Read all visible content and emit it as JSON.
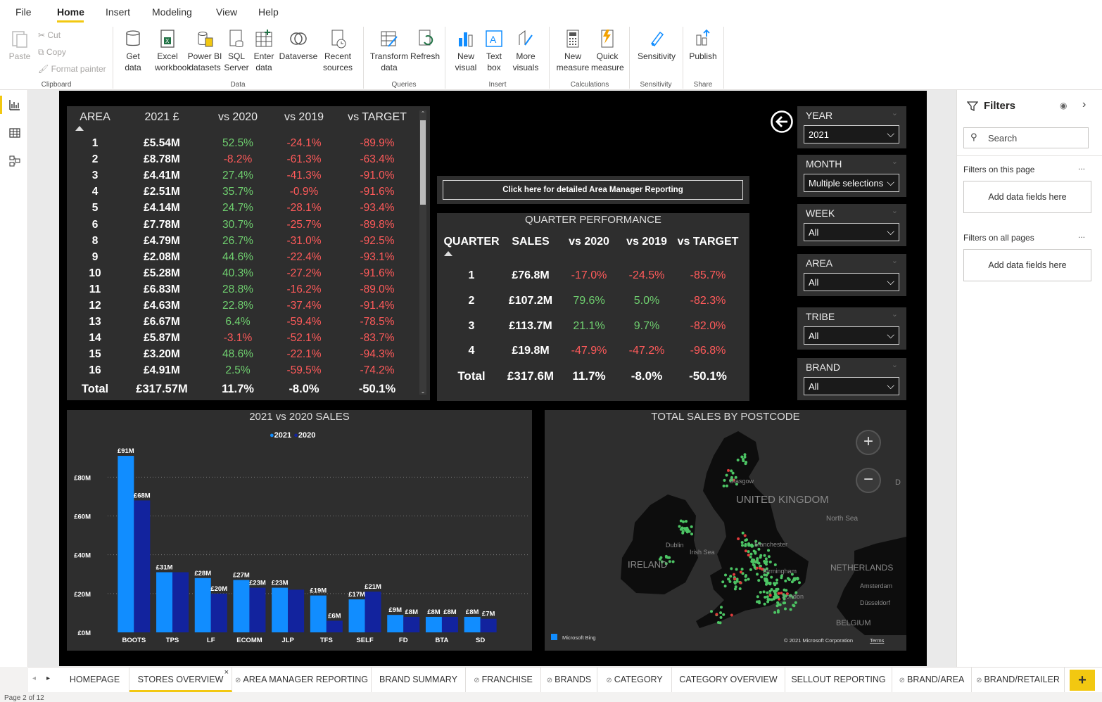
{
  "menu": {
    "items": [
      "File",
      "Home",
      "Insert",
      "Modeling",
      "View",
      "Help"
    ],
    "active": "Home"
  },
  "ribbon": {
    "clipboard": {
      "paste": "Paste",
      "cut": "Cut",
      "copy": "Copy",
      "format_painter": "Format painter",
      "group": "Clipboard"
    },
    "data": {
      "get_data": "Get data",
      "excel": "Excel workbook",
      "pbi_datasets": "Power BI datasets",
      "sql": "SQL Server",
      "enter": "Enter data",
      "dataverse": "Dataverse",
      "recent": "Recent sources",
      "group": "Data"
    },
    "queries": {
      "transform": "Transform data",
      "refresh": "Refresh",
      "group": "Queries"
    },
    "insert": {
      "new_visual": "New visual",
      "text_box": "Text box",
      "more_visuals": "More visuals",
      "group": "Insert"
    },
    "calculations": {
      "new_measure": "New measure",
      "quick_measure": "Quick measure",
      "group": "Calculations"
    },
    "sensitivity": {
      "label": "Sensitivity",
      "group": "Sensitivity"
    },
    "share": {
      "publish": "Publish",
      "group": "Share"
    }
  },
  "area_table": {
    "headers": [
      "AREA",
      "2021 £",
      "vs 2020",
      "vs 2019",
      "vs TARGET"
    ],
    "rows": [
      [
        "1",
        "£5.54M",
        "52.5%",
        "-24.1%",
        "-89.9%"
      ],
      [
        "2",
        "£8.78M",
        "-8.2%",
        "-61.3%",
        "-63.4%"
      ],
      [
        "3",
        "£4.41M",
        "27.4%",
        "-41.3%",
        "-91.0%"
      ],
      [
        "4",
        "£2.51M",
        "35.7%",
        "-0.9%",
        "-91.6%"
      ],
      [
        "5",
        "£4.14M",
        "24.7%",
        "-28.1%",
        "-93.4%"
      ],
      [
        "6",
        "£7.78M",
        "30.7%",
        "-25.7%",
        "-89.8%"
      ],
      [
        "8",
        "£4.79M",
        "26.7%",
        "-31.0%",
        "-92.5%"
      ],
      [
        "9",
        "£2.08M",
        "44.6%",
        "-22.4%",
        "-93.1%"
      ],
      [
        "10",
        "£5.28M",
        "40.3%",
        "-27.2%",
        "-91.6%"
      ],
      [
        "11",
        "£6.83M",
        "28.8%",
        "-16.2%",
        "-89.0%"
      ],
      [
        "12",
        "£4.63M",
        "22.8%",
        "-37.4%",
        "-91.4%"
      ],
      [
        "13",
        "£6.67M",
        "6.4%",
        "-59.4%",
        "-78.5%"
      ],
      [
        "14",
        "£5.87M",
        "-3.1%",
        "-52.1%",
        "-83.7%"
      ],
      [
        "15",
        "£3.20M",
        "48.6%",
        "-22.1%",
        "-94.3%"
      ],
      [
        "16",
        "£4.91M",
        "2.5%",
        "-59.5%",
        "-74.2%"
      ]
    ],
    "total": [
      "Total",
      "£317.57M",
      "11.7%",
      "-8.0%",
      "-50.1%"
    ]
  },
  "am_button": "Click here for detailed Area Manager Reporting",
  "quarter": {
    "title": "QUARTER PERFORMANCE",
    "headers": [
      "QUARTER",
      "SALES",
      "vs 2020",
      "vs 2019",
      "vs TARGET"
    ],
    "rows": [
      [
        "1",
        "£76.8M",
        "-17.0%",
        "-24.5%",
        "-85.7%"
      ],
      [
        "2",
        "£107.2M",
        "79.6%",
        "5.0%",
        "-82.3%"
      ],
      [
        "3",
        "£113.7M",
        "21.1%",
        "9.7%",
        "-82.0%"
      ],
      [
        "4",
        "£19.8M",
        "-47.9%",
        "-47.2%",
        "-96.8%"
      ]
    ],
    "total": [
      "Total",
      "£317.6M",
      "11.7%",
      "-8.0%",
      "-50.1%"
    ]
  },
  "slicers": [
    {
      "label": "YEAR",
      "value": "2021"
    },
    {
      "label": "MONTH",
      "value": "Multiple selections"
    },
    {
      "label": "WEEK",
      "value": "All"
    },
    {
      "label": "AREA",
      "value": "All"
    },
    {
      "label": "TRIBE",
      "value": "All"
    },
    {
      "label": "BRAND",
      "value": "All"
    }
  ],
  "chart_data": {
    "type": "bar",
    "title": "2021 vs 2020 SALES",
    "categories": [
      "BOOTS",
      "TPS",
      "LF",
      "ECOMM",
      "JLP",
      "TFS",
      "SELF",
      "FD",
      "BTA",
      "SD"
    ],
    "series": [
      {
        "name": "2021",
        "values": [
          91,
          31,
          28,
          27,
          23,
          19,
          17,
          9,
          8,
          8
        ],
        "labels": [
          "£91M",
          "£31M",
          "£28M",
          "£27M",
          "£23M",
          "£19M",
          "£17M",
          "£9M",
          "£8M",
          "£8M"
        ]
      },
      {
        "name": "2020",
        "values": [
          68,
          31,
          20,
          23,
          22,
          6,
          21,
          8,
          8,
          7
        ],
        "labels": [
          "£68M",
          "",
          "£20M",
          "£23M",
          "",
          "£6M",
          "£21M",
          "£8M",
          "£8M",
          "£7M"
        ]
      }
    ],
    "yticks": [
      "£0M",
      "£20M",
      "£40M",
      "£60M",
      "£80M"
    ],
    "ylim": [
      0,
      95
    ],
    "colors": {
      "2021": "#118dff",
      "2020": "#12239e"
    },
    "legend": "top-center",
    "grid": true
  },
  "map": {
    "title": "TOTAL SALES BY POSTCODE",
    "labels": {
      "uk": "UNITED KINGDOM",
      "ireland": "IRELAND",
      "netherlands": "NETHERLANDS",
      "belgium": "BELGIUM",
      "north_sea": "North Sea",
      "irish_sea": "Irish Sea",
      "dublin": "Dublin",
      "glasgow": "Glasgow",
      "manchester": "Manchester",
      "birmingham": "Birmingham",
      "london": "London",
      "amsterdam": "Amsterdam",
      "dusseldorf": "Düsseldorf",
      "d": "D"
    },
    "bing": "Microsoft Bing",
    "copyright": "© 2021 Microsoft Corporation",
    "terms": "Terms"
  },
  "filters": {
    "title": "Filters",
    "search": "Search",
    "this_page": "Filters on this page",
    "all_pages": "Filters on all pages",
    "add": "Add data fields here",
    "more": "..."
  },
  "tabs": [
    "HOMEPAGE",
    "STORES OVERVIEW",
    "AREA MANAGER REPORTING",
    "BRAND SUMMARY",
    "FRANCHISE",
    "BRANDS",
    "CATEGORY",
    "CATEGORY OVERVIEW",
    "SELLOUT REPORTING",
    "BRAND/AREA",
    "BRAND/RETAILER"
  ],
  "active_tab": "STORES OVERVIEW",
  "status": "Page 2 of 12"
}
